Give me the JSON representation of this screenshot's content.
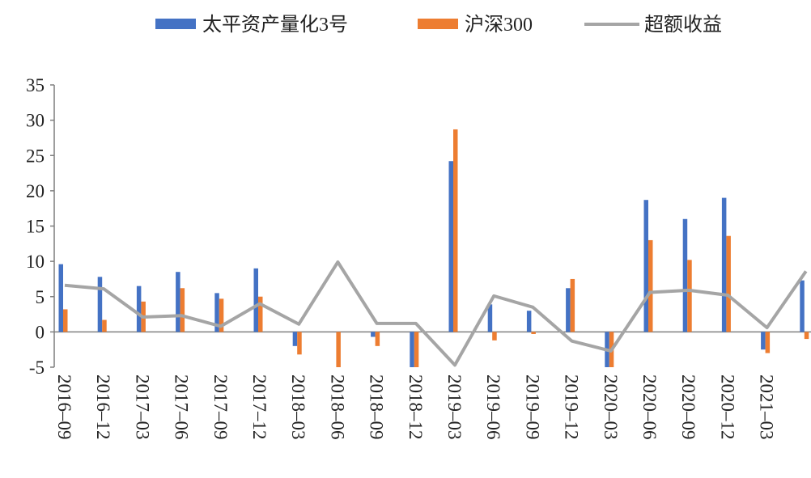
{
  "chart_data": {
    "type": "bar",
    "title": "",
    "xlabel": "",
    "ylabel": "",
    "ylim": [
      -5,
      35
    ],
    "yticks": [
      -5,
      0,
      5,
      10,
      15,
      20,
      25,
      30,
      35
    ],
    "grid": false,
    "legend_position": "top",
    "categories": [
      "2016-09",
      "2016-12",
      "2017-03",
      "2017-06",
      "2017-09",
      "2017-12",
      "2018-03",
      "2018-06",
      "2018-09",
      "2018-12",
      "2019-03",
      "2019-06",
      "2019-09",
      "2019-12",
      "2020-03",
      "2020-06",
      "2020-09",
      "2020-12",
      "2021-03",
      ""
    ],
    "series": [
      {
        "name": "太平资产量化3号",
        "type": "bar",
        "color": "#4472C4",
        "values": [
          9.6,
          7.8,
          6.5,
          8.5,
          5.5,
          9.0,
          -2.0,
          0,
          -0.7,
          -5.2,
          24.2,
          3.9,
          3.0,
          6.2,
          -5.2,
          18.7,
          16.0,
          19.0,
          -2.5,
          7.3
        ]
      },
      {
        "name": "沪深300",
        "type": "bar",
        "color": "#ED7D31",
        "values": [
          3.2,
          1.7,
          4.3,
          6.2,
          4.7,
          5.0,
          -3.2,
          -5.2,
          -2.0,
          -5.2,
          28.7,
          -1.2,
          -0.3,
          7.5,
          -5.2,
          13.0,
          10.2,
          13.6,
          -3.0,
          -1.0
        ]
      },
      {
        "name": "超额收益",
        "type": "line",
        "color": "#A5A5A5",
        "values": [
          6.6,
          6.1,
          2.1,
          2.3,
          0.8,
          4.0,
          1.1,
          9.9,
          1.2,
          1.2,
          -4.7,
          5.1,
          3.5,
          -1.3,
          -2.7,
          5.6,
          5.9,
          5.2,
          0.6,
          8.6
        ]
      }
    ]
  }
}
